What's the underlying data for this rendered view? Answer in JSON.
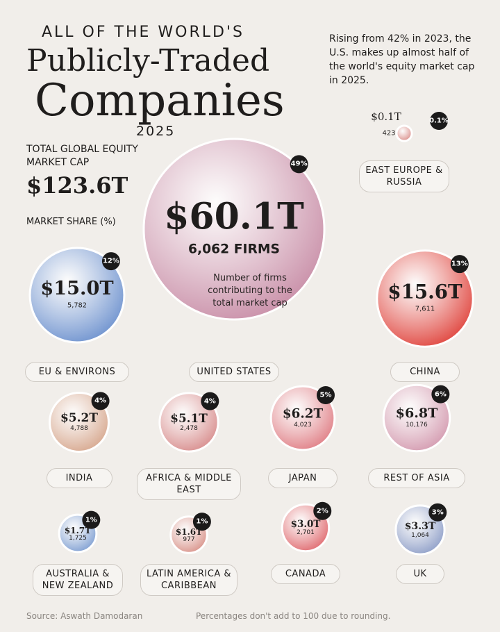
{
  "chart_data": {
    "type": "bubble",
    "kicker": "ALL OF THE WORLD'S",
    "title": "Publicly-Traded",
    "title_line2": "Companies",
    "subtitle": "2025",
    "note": "Rising from 42% in 2023, the U.S. makes up almost half of the world's equity market cap in 2025.",
    "total_caption": "TOTAL GLOBAL EQUITY MARKET CAP",
    "total_label": "$123.6T",
    "share_caption": "MARKET SHARE (%)",
    "annotation": "Number of firms contributing to the total market cap",
    "source": "Source: Aswath Damodaran",
    "footnote": "Percentages don't add to 100 due to rounding.",
    "categories": [
      "UNITED STATES",
      "EU & ENVIRONS",
      "CHINA",
      "INDIA",
      "AFRICA & MIDDLE EAST",
      "JAPAN",
      "REST OF ASIA",
      "AUSTRALIA & NEW ZEALAND",
      "LATIN AMERICA & CARIBBEAN",
      "CANADA",
      "UK",
      "EAST EUROPE & RUSSIA"
    ],
    "colors": [
      "#c98fa8",
      "#6f93cf",
      "#e0463f",
      "#d7a88f",
      "#d88e8e",
      "#e07f86",
      "#d49bb0",
      "#7f9fd2",
      "#d9938a",
      "#e06b70",
      "#8f9fc8",
      "#d98a86"
    ],
    "market_cap": {
      "values": [
        60.1,
        15.0,
        15.6,
        5.2,
        5.1,
        6.2,
        6.8,
        1.7,
        1.6,
        3.0,
        3.3,
        0.1
      ],
      "value_labels": [
        "$60.1T",
        "$15.0T",
        "$15.6T",
        "$5.2T",
        "$5.1T",
        "$6.2T",
        "$6.8T",
        "$1.7T",
        "$1.6T",
        "$3.0T",
        "$3.3T",
        "$0.1T"
      ]
    },
    "firms": {
      "values": [
        6062,
        5782,
        7611,
        4788,
        2478,
        4023,
        10176,
        1725,
        977,
        2701,
        1064,
        423
      ],
      "value_labels": [
        "6,062 FIRMS",
        "5,782",
        "7,611",
        "4,788",
        "2,478",
        "4,023",
        "10,176",
        "1,725",
        "977",
        "2,701",
        "1,064",
        "423"
      ]
    },
    "share": {
      "values": [
        49,
        12,
        13,
        4,
        4,
        5,
        6,
        1,
        1,
        2,
        3,
        0.1
      ],
      "value_labels": [
        "49%",
        "12%",
        "13%",
        "4%",
        "4%",
        "5%",
        "6%",
        "1%",
        "1%",
        "2%",
        "3%",
        "0.1%"
      ]
    }
  }
}
